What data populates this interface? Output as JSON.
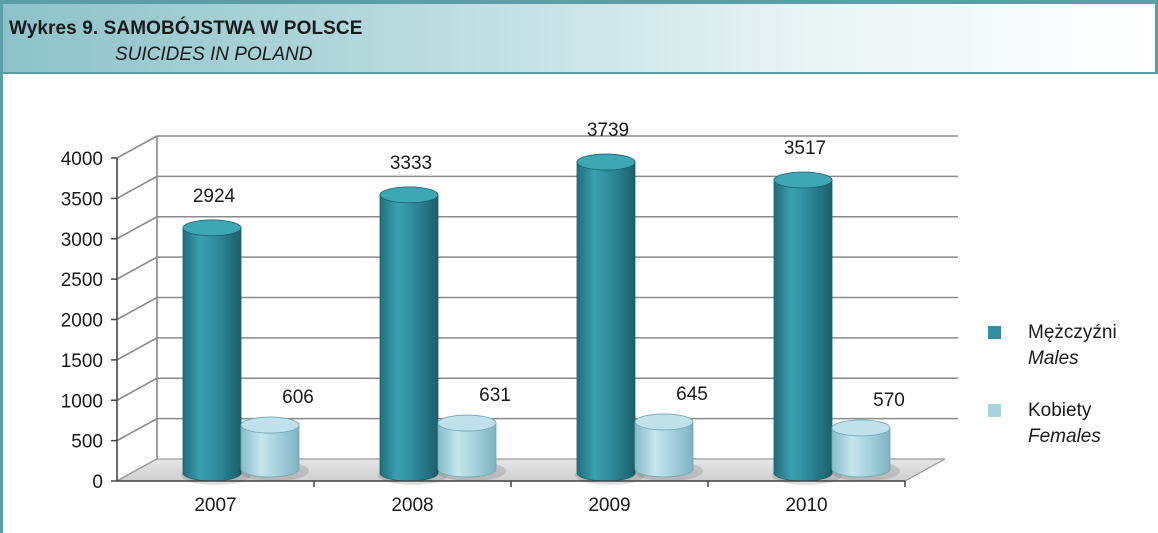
{
  "header": {
    "title": "Wykres 9. SAMOBÓJSTWA W POLSCE",
    "subtitle": "SUICIDES IN POLAND"
  },
  "colors": {
    "accent": "#5a9ea6",
    "males": "#2f8e9f",
    "females": "#a8d4df"
  },
  "chart_data": {
    "type": "bar",
    "categories": [
      "2007",
      "2008",
      "2009",
      "2010"
    ],
    "series": [
      {
        "name": "Mężczyźni",
        "name_en": "Males",
        "values": [
          2924,
          3333,
          3739,
          3517
        ]
      },
      {
        "name": "Kobiety",
        "name_en": "Females",
        "values": [
          606,
          631,
          645,
          570
        ]
      }
    ],
    "yticks": [
      "0",
      "500",
      "1000",
      "1500",
      "2000",
      "2500",
      "3000",
      "3500",
      "4000"
    ],
    "ylim": [
      0,
      4000
    ],
    "grid": true,
    "legend_position": "right",
    "style": "3d-cylinder"
  }
}
